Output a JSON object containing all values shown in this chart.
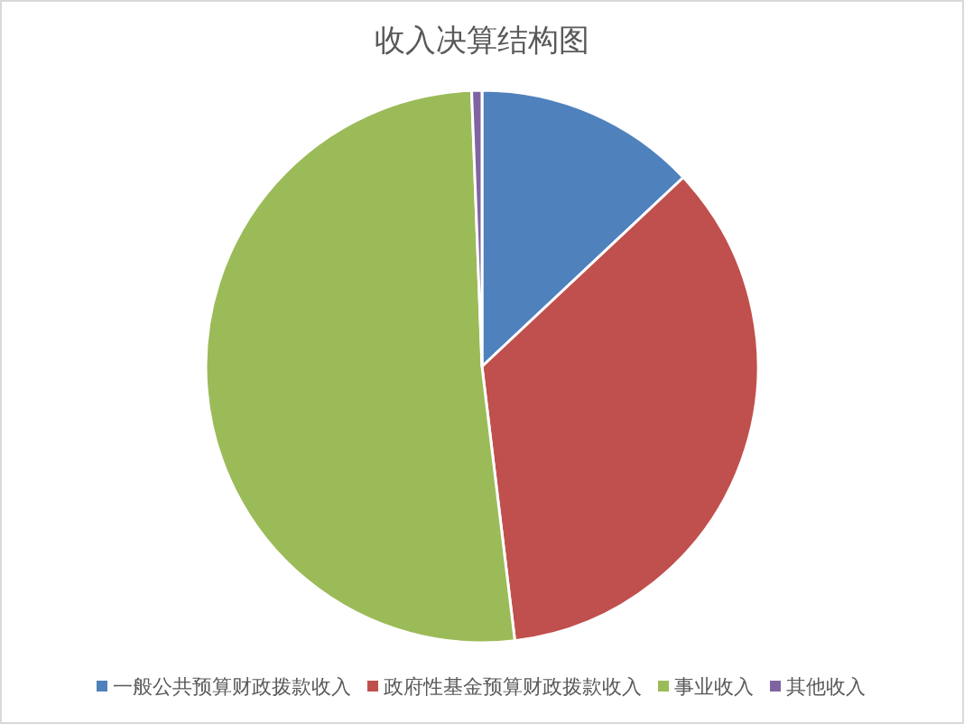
{
  "chart_data": {
    "type": "pie",
    "title": "收入决算结构图",
    "categories": [
      "一般公共预算财政拨款收入",
      "政府性基金预算财政拨款收入",
      "事业收入",
      "其他收入"
    ],
    "values": [
      13.0,
      35.1,
      51.3,
      0.6
    ],
    "colors": [
      "#4f81bd",
      "#c0504d",
      "#9bbb59",
      "#8064a2"
    ],
    "legend": "bottom"
  }
}
